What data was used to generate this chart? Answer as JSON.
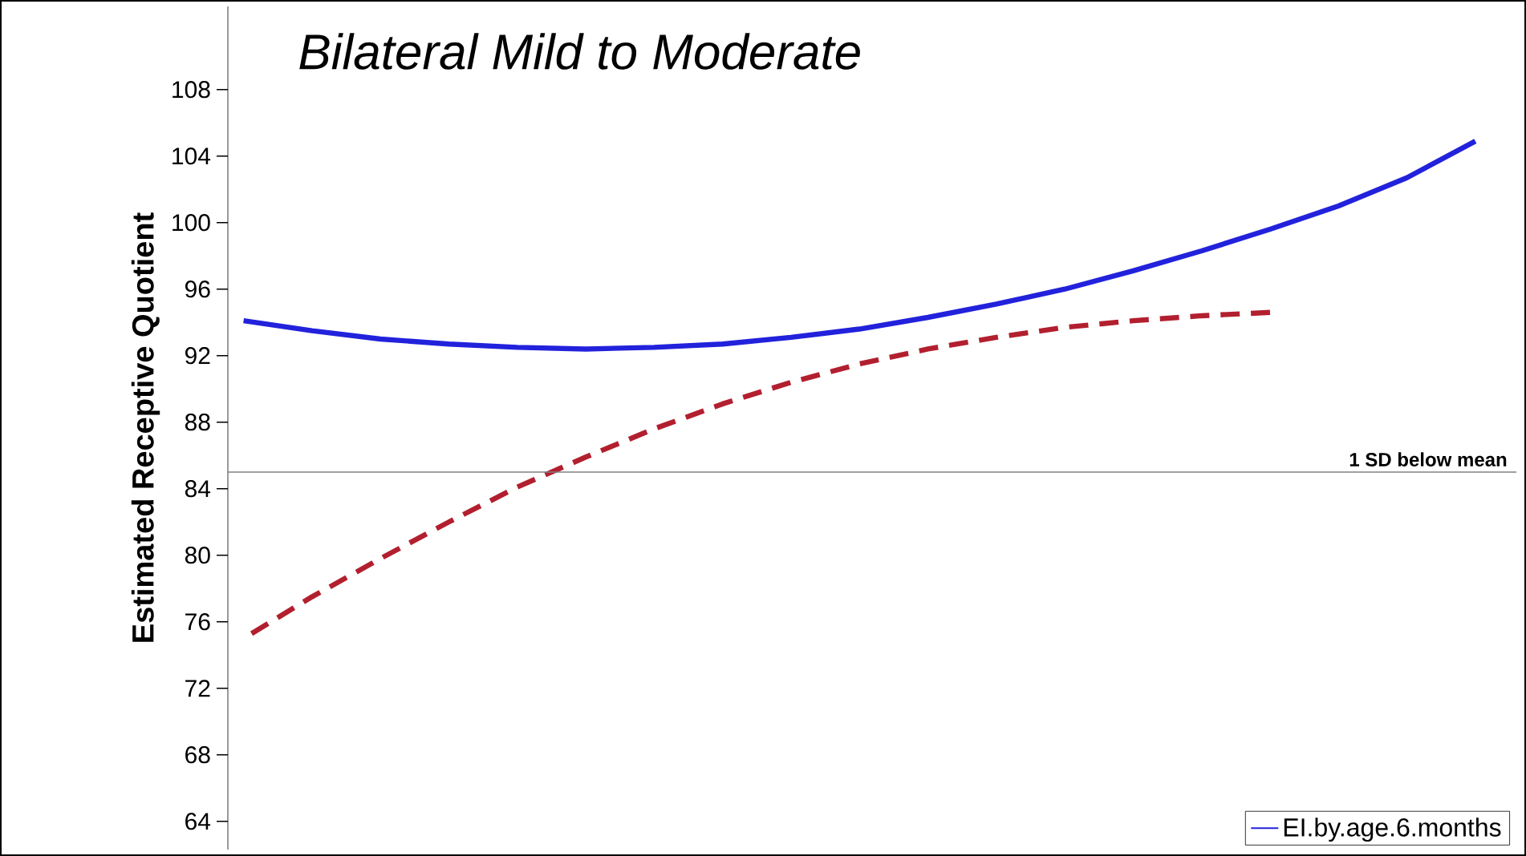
{
  "chart_data": {
    "type": "line",
    "title": "Bilateral Mild to Moderate",
    "ylabel": "Estimated Receptive Quotient",
    "categories": [
      null,
      null,
      null,
      null,
      null,
      null,
      null,
      null,
      null,
      null,
      null,
      null,
      null,
      null,
      null,
      null,
      null,
      null,
      null
    ],
    "series": [
      {
        "name": "EI.by.age.6.months",
        "color": "#2222dd",
        "line_style": "solid",
        "values": [
          94.1,
          93.5,
          93.0,
          92.7,
          92.5,
          92.4,
          92.5,
          92.7,
          93.1,
          93.6,
          94.3,
          95.1,
          96.0,
          97.1,
          98.3,
          99.6,
          101.0,
          102.7,
          104.9
        ]
      },
      {
        "color": "#b22030",
        "line_style": "dashed",
        "values": [
          75.0,
          77.5,
          79.8,
          82.0,
          84.1,
          85.9,
          87.6,
          89.1,
          90.4,
          91.5,
          92.4,
          93.1,
          93.7,
          94.1,
          94.4,
          94.6,
          null,
          null,
          null
        ]
      }
    ],
    "ylim": [
      62.3,
      113
    ],
    "yticks": [
      64,
      68,
      72,
      76,
      80,
      84,
      88,
      92,
      96,
      100,
      104,
      108
    ],
    "ref_lines": [
      {
        "axis": "y",
        "value": 85,
        "label": "1 SD below mean",
        "color": "#808080"
      }
    ],
    "legend": "bottom right",
    "tick_labels": "y",
    "grid": false,
    "marker": "none"
  }
}
